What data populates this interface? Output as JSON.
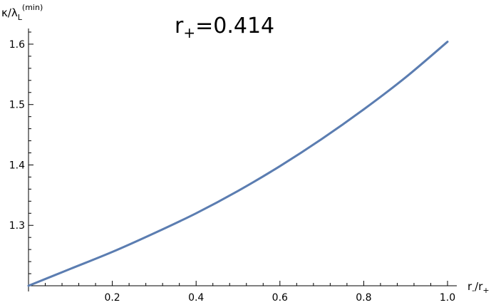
{
  "chart_data": {
    "type": "line",
    "title": {
      "base": "r",
      "sub": "+",
      "rest": "=0.414"
    },
    "xlabel": {
      "base": "r",
      "sub1": "-",
      "mid": "/r",
      "sub2": "+"
    },
    "ylabel": {
      "base": "κ/λ",
      "sub": "L",
      "sup": "(min)"
    },
    "xlim": [
      0.0,
      1.0
    ],
    "ylim": [
      1.2,
      1.62
    ],
    "x_ticks": [
      0.2,
      0.4,
      0.6,
      0.8,
      1.0
    ],
    "x_tick_labels": [
      "0.2",
      "0.4",
      "0.6",
      "0.8",
      "1.0"
    ],
    "y_ticks": [
      1.3,
      1.4,
      1.5,
      1.6
    ],
    "y_tick_labels": [
      "1.3",
      "1.4",
      "1.5",
      "1.6"
    ],
    "grid": false,
    "legend": "none",
    "series": [
      {
        "color": "#5b7db1",
        "x": [
          0.0,
          0.1,
          0.2,
          0.3,
          0.4,
          0.5,
          0.6,
          0.7,
          0.8,
          0.9,
          1.0
        ],
        "y": [
          1.2,
          1.228,
          1.256,
          1.287,
          1.32,
          1.357,
          1.398,
          1.443,
          1.492,
          1.545,
          1.604
        ]
      }
    ]
  }
}
